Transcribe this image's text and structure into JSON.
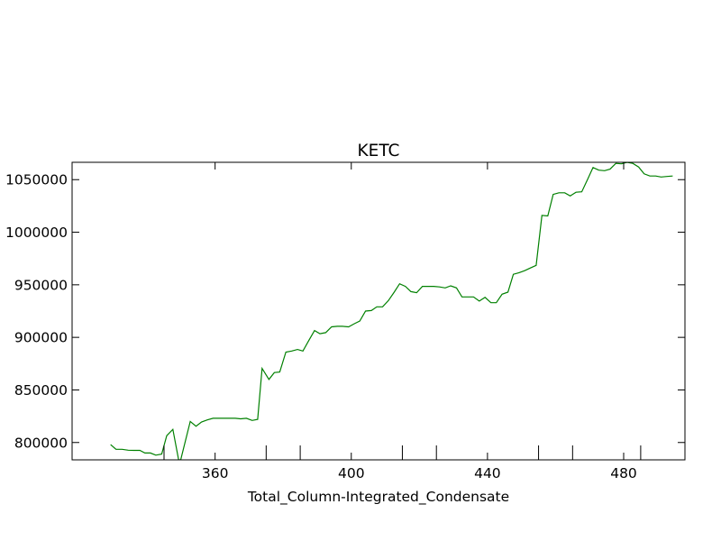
{
  "chart_data": {
    "type": "line",
    "title": "KETC",
    "xlabel": "Total_Column-Integrated_Condensate",
    "ylabel": "",
    "xlim": [
      318,
      498
    ],
    "ylim": [
      783500,
      1066500
    ],
    "x_ticks": [
      360,
      400,
      440,
      480
    ],
    "y_ticks": [
      800000,
      850000,
      900000,
      950000,
      1000000,
      1050000
    ],
    "x_tick_labels": [
      "360",
      "400",
      "440",
      "480"
    ],
    "y_tick_labels": [
      "800000",
      "850000",
      "900000",
      "950000",
      "1000000",
      "1050000"
    ],
    "grid": false,
    "series": [
      {
        "color": "#008000",
        "x": [
          329.3,
          330.9,
          332.7,
          334.5,
          336.1,
          337.9,
          339.4,
          341.0,
          342.6,
          344.3,
          345.8,
          347.6,
          349.3,
          349.9,
          352.7,
          354.4,
          356.0,
          357.7,
          359.4,
          360.7,
          362.5,
          364.2,
          365.9,
          367.5,
          369.2,
          370.9,
          372.5,
          373.8,
          375.8,
          377.4,
          379.0,
          380.8,
          382.5,
          384.2,
          385.8,
          387.5,
          389.2,
          390.8,
          392.5,
          394.2,
          395.9,
          397.4,
          399.2,
          400.9,
          402.5,
          404.2,
          405.9,
          407.5,
          409.2,
          410.9,
          412.6,
          414.2,
          415.9,
          417.5,
          419.2,
          420.9,
          422.5,
          424.2,
          425.9,
          427.6,
          429.2,
          430.9,
          432.5,
          434.2,
          435.9,
          437.6,
          439.3,
          441.0,
          442.6,
          444.3,
          446.0,
          447.6,
          449.3,
          451.0,
          452.6,
          454.3,
          456.0,
          457.7,
          459.3,
          461.0,
          462.7,
          464.3,
          466.0,
          467.7,
          469.3,
          471.0,
          472.7,
          474.4,
          476.0,
          477.7,
          479.3,
          481.0,
          482.7,
          484.4,
          486.0,
          487.7,
          489.4,
          491.0,
          492.7,
          494.4
        ],
        "y": [
          798000,
          793500,
          793500,
          792700,
          792500,
          792500,
          790000,
          790000,
          788000,
          789000,
          806500,
          812500,
          783500,
          783500,
          820000,
          815500,
          819500,
          821500,
          823000,
          823000,
          823000,
          823000,
          823000,
          822500,
          823000,
          821000,
          822000,
          870500,
          860000,
          866500,
          867000,
          886000,
          887000,
          888500,
          887000,
          897000,
          906500,
          903500,
          904500,
          910000,
          910500,
          910500,
          910000,
          913000,
          915500,
          925000,
          925500,
          929000,
          929000,
          935000,
          943000,
          951000,
          948500,
          943500,
          942500,
          948500,
          948500,
          948500,
          948000,
          947000,
          949000,
          947000,
          938500,
          938500,
          938500,
          934500,
          938000,
          933000,
          933000,
          941000,
          943000,
          960000,
          961500,
          963500,
          966000,
          968500,
          1016000,
          1015500,
          1036000,
          1037500,
          1037500,
          1034500,
          1038000,
          1038500,
          1049500,
          1061500,
          1059000,
          1058500,
          1060000,
          1065500,
          1065000,
          1066500,
          1065500,
          1062000,
          1055500,
          1053500,
          1053500,
          1052500,
          1053000,
          1053500
        ]
      }
    ]
  }
}
